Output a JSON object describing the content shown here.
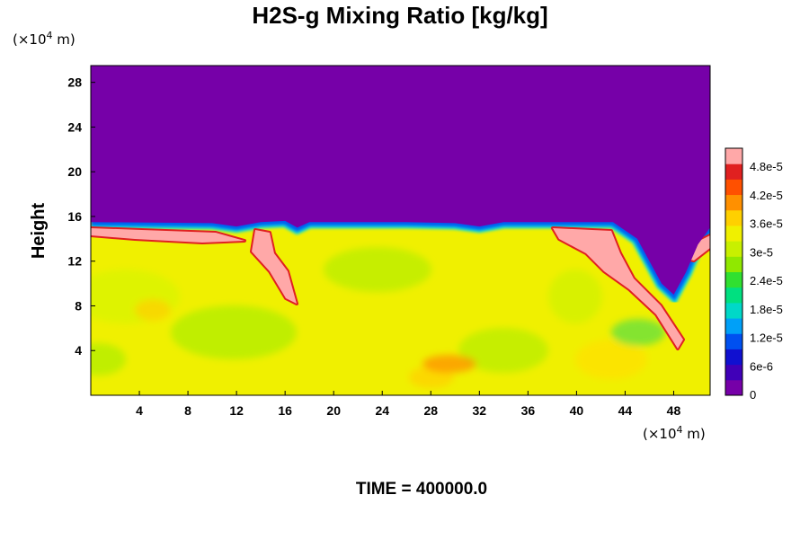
{
  "chart_data": {
    "type": "heatmap",
    "title": "H2S-g Mixing Ratio [kg/kg]",
    "ylabel": "Height",
    "x_unit_prefix": "(×10",
    "x_unit_exp": "4",
    "x_unit_suffix": " m)",
    "y_unit_prefix": "(×10",
    "y_unit_exp": "4",
    "y_unit_suffix": " m)",
    "xlim": [
      0,
      51
    ],
    "ylim": [
      0,
      29.5
    ],
    "x_ticks": [
      4,
      8,
      12,
      16,
      20,
      24,
      28,
      32,
      36,
      40,
      44,
      48
    ],
    "x_tick_labels": [
      "4",
      "8",
      "12",
      "16",
      "20",
      "24",
      "28",
      "32",
      "36",
      "40",
      "44",
      "48"
    ],
    "y_ticks": [
      4,
      8,
      12,
      16,
      20,
      24,
      28
    ],
    "y_tick_labels": [
      "4",
      "8",
      "12",
      "16",
      "20",
      "24",
      "28"
    ],
    "colorbar": {
      "min": 0,
      "max": 5.2e-05,
      "ticks": [
        0,
        6e-06,
        1.2e-05,
        1.8e-05,
        2.4e-05,
        3e-05,
        3.6e-05,
        4.2e-05,
        4.8e-05
      ],
      "tick_labels": [
        "0",
        "6e-6",
        "1.2e-5",
        "1.8e-5",
        "2.4e-5",
        "3e-5",
        "3.6e-5",
        "4.2e-5",
        "4.8e-5"
      ],
      "colors": [
        "#7600a8",
        "#4000b8",
        "#1010d0",
        "#0050f0",
        "#00a0f8",
        "#00d8c8",
        "#00e080",
        "#30e030",
        "#90e800",
        "#c8f000",
        "#f0f000",
        "#ffd000",
        "#ff9000",
        "#ff5000",
        "#e02020",
        "#ffa8a8"
      ]
    },
    "boundary_height": [
      [
        0,
        15.5
      ],
      [
        10,
        15.4
      ],
      [
        12,
        15.1
      ],
      [
        14,
        15.5
      ],
      [
        16,
        15.6
      ],
      [
        17,
        15.0
      ],
      [
        18,
        15.5
      ],
      [
        26,
        15.5
      ],
      [
        30,
        15.4
      ],
      [
        32,
        15.1
      ],
      [
        34,
        15.5
      ],
      [
        43,
        15.5
      ],
      [
        45,
        14.0
      ],
      [
        46,
        12.0
      ],
      [
        47,
        10.0
      ],
      [
        48,
        9.0
      ],
      [
        49,
        11.0
      ],
      [
        50,
        13.5
      ],
      [
        51,
        15.0
      ]
    ],
    "background_value": 3.3e-05,
    "time_label": "TIME = 400000.0"
  },
  "colors": {
    "upper_layer": "#7600a8",
    "field": "#c8f000",
    "max_band": "#ffa8a8"
  }
}
